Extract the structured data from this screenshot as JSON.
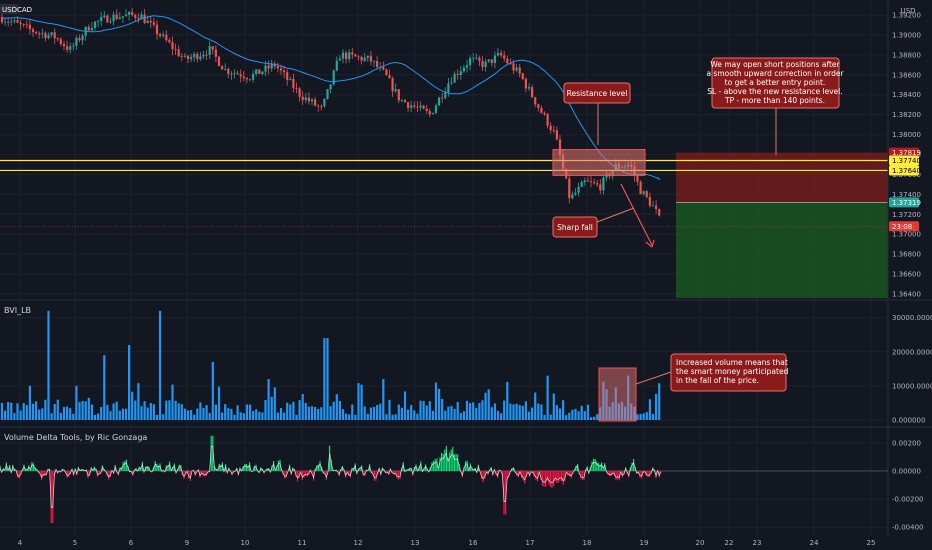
{
  "chart_data": [
    {
      "type": "candlestick",
      "symbol": "USDCAD",
      "currency": "USD",
      "y_ticks": [
        "1.39200",
        "1.39000",
        "1.38800",
        "1.38600",
        "1.38400",
        "1.38200",
        "1.38000",
        "1.37800",
        "1.37600",
        "1.37400",
        "1.37200",
        "1.37000",
        "1.36800",
        "1.36600",
        "1.36400"
      ],
      "ylim": [
        1.3634,
        1.3925
      ],
      "price_tags": [
        {
          "label": "1.37819",
          "value": 1.37819,
          "color": "#b71c1c"
        },
        {
          "label": "1.37740",
          "value": 1.3774,
          "color": "#ffeb3b"
        },
        {
          "label": "1.37640",
          "value": 1.3764,
          "color": "#ffeb3b"
        },
        {
          "label": "1.37319",
          "value": 1.37319,
          "color": "#26a69a"
        },
        {
          "label": "23:08",
          "value": 1.3708,
          "color": "#e53935"
        }
      ],
      "resistance_levels": [
        1.3774,
        1.3764
      ],
      "position": {
        "stop": 1.37819,
        "entry": 1.37319,
        "target": 1.3636
      },
      "annotations": [
        {
          "id": "resistance",
          "text": "Resistance level"
        },
        {
          "id": "fall",
          "text": "Sharp fall"
        },
        {
          "id": "plan",
          "lines": [
            "We may open short positions after",
            "a smooth upward correction in order",
            "to get a better entry point.",
            "SL - above the new resistance level.",
            "TP - more than 140 points."
          ]
        }
      ],
      "series": [
        {
          "type": "candles",
          "up_color": "#26a69a",
          "down_color": "#ef5350"
        },
        {
          "type": "line",
          "color": "#2196f3"
        }
      ],
      "x_ticks": [
        "4",
        "5",
        "6",
        "9",
        "10",
        "11",
        "12",
        "13",
        "16",
        "17",
        "18",
        "19",
        "20",
        "22",
        "23",
        "24",
        "25"
      ]
    },
    {
      "type": "bar",
      "title": "BVI_LB",
      "y_ticks": [
        "30000.000000",
        "20000.000000",
        "10000.000000",
        "0.000000"
      ],
      "ylim": [
        0,
        34000
      ],
      "color": "#2196f3",
      "annotation": {
        "lines": [
          "Increased volume means that",
          "the smart money participated",
          "in the fall of the price."
        ]
      }
    },
    {
      "type": "line",
      "title": "Volume Delta Tools, by Ric Gonzaga",
      "y_ticks": [
        "0.00200",
        "0.00000",
        "-0.00200",
        "-0.00400"
      ],
      "ylim": [
        -0.0042,
        0.0027
      ],
      "colors": {
        "up": "#00e676",
        "down": "#ff1744",
        "line": "#e0e0e0"
      }
    }
  ]
}
